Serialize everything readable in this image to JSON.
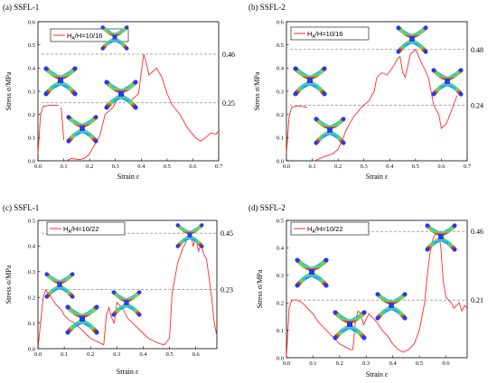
{
  "chart_data": [
    {
      "type": "line",
      "panel_label": "(a) SSFL-1",
      "xlabel": "Strain ε",
      "ylabel": "Stress σ/MPa",
      "xlim": [
        0,
        0.7
      ],
      "ylim": [
        0,
        0.6
      ],
      "xticks": [
        "0.0",
        "0.1",
        "0.2",
        "0.3",
        "0.4",
        "0.5",
        "0.6",
        "0.7"
      ],
      "yticks": [
        "0.0",
        "0.1",
        "0.2",
        "0.3",
        "0.4",
        "0.5",
        "0.6"
      ],
      "legend": {
        "main": "H",
        "sub": "A",
        "rest": "/H=10/16"
      },
      "line_color": "#ff2a2a",
      "annotations": [
        {
          "label": "0.46",
          "y": 0.46
        },
        {
          "label": "0.25",
          "y": 0.25
        }
      ],
      "series": [
        {
          "x": [
            0.0,
            0.01,
            0.02,
            0.05,
            0.07,
            0.08
          ],
          "y": [
            0.03,
            0.2,
            0.235,
            0.24,
            0.24,
            0.24
          ]
        },
        {
          "x": [
            0.09,
            0.1
          ],
          "y": [
            0.23,
            0.09
          ]
        },
        {
          "x": [
            0.11,
            0.13,
            0.16,
            0.18,
            0.2,
            0.22,
            0.24,
            0.26,
            0.29,
            0.3,
            0.31,
            0.33,
            0.36,
            0.39,
            0.4,
            0.41,
            0.42,
            0.43,
            0.44,
            0.46,
            0.48,
            0.5,
            0.52,
            0.55,
            0.58,
            0.61,
            0.63,
            0.65,
            0.67,
            0.69,
            0.7
          ],
          "y": [
            0.0,
            0.01,
            0.005,
            0.01,
            0.03,
            0.07,
            0.11,
            0.2,
            0.23,
            0.25,
            0.27,
            0.27,
            0.26,
            0.29,
            0.38,
            0.46,
            0.42,
            0.37,
            0.38,
            0.4,
            0.36,
            0.29,
            0.24,
            0.2,
            0.14,
            0.1,
            0.085,
            0.1,
            0.12,
            0.115,
            0.13
          ]
        }
      ]
    },
    {
      "type": "line",
      "panel_label": "(b) SSFL-2",
      "xlabel": "Strain ε",
      "ylabel": "Stress σ/MPa",
      "xlim": [
        0,
        0.7
      ],
      "ylim": [
        0,
        0.6
      ],
      "xticks": [
        "0.0",
        "0.1",
        "0.2",
        "0.3",
        "0.4",
        "0.5",
        "0.6",
        "0.7"
      ],
      "yticks": [
        "0.0",
        "0.1",
        "0.2",
        "0.3",
        "0.4",
        "0.5",
        "0.6"
      ],
      "legend": {
        "main": "H",
        "sub": "A",
        "rest": "/H=10/16"
      },
      "line_color": "#ff2a2a",
      "annotations": [
        {
          "label": "0.48",
          "y": 0.48
        },
        {
          "label": "0.24",
          "y": 0.24
        }
      ],
      "series": [
        {
          "x": [
            0.0,
            0.01,
            0.02,
            0.04,
            0.06,
            0.08
          ],
          "y": [
            0.03,
            0.19,
            0.23,
            0.235,
            0.235,
            0.23
          ]
        },
        {
          "x": [
            0.11,
            0.13,
            0.15,
            0.18,
            0.2,
            0.22,
            0.23,
            0.26,
            0.29,
            0.32,
            0.34,
            0.35,
            0.37,
            0.39,
            0.41,
            0.43,
            0.44,
            0.45,
            0.46,
            0.47,
            0.48,
            0.5,
            0.52,
            0.55,
            0.57,
            0.59,
            0.6,
            0.62,
            0.64,
            0.65,
            0.66
          ],
          "y": [
            0.0,
            0.01,
            0.02,
            0.03,
            0.05,
            0.1,
            0.13,
            0.19,
            0.23,
            0.26,
            0.3,
            0.36,
            0.38,
            0.37,
            0.4,
            0.44,
            0.45,
            0.38,
            0.36,
            0.41,
            0.46,
            0.48,
            0.43,
            0.36,
            0.24,
            0.2,
            0.14,
            0.16,
            0.22,
            0.25,
            0.28
          ]
        }
      ]
    },
    {
      "type": "line",
      "panel_label": "(c) SSFL-1",
      "xlabel": "Strain ε",
      "ylabel": "Stress σ/MPa",
      "xlim": [
        0,
        0.68
      ],
      "ylim": [
        0,
        0.5
      ],
      "xticks": [
        "0.0",
        "0.1",
        "0.2",
        "0.3",
        "0.4",
        "0.5",
        "0.6"
      ],
      "yticks": [
        "0.0",
        "0.1",
        "0.2",
        "0.3",
        "0.4",
        "0.5"
      ],
      "legend": {
        "main": "H",
        "sub": "A",
        "rest": "/H=10/22"
      },
      "line_color": "#ff2a2a",
      "annotations": [
        {
          "label": "0.45",
          "y": 0.45
        },
        {
          "label": "0.23",
          "y": 0.23
        }
      ],
      "series": [
        {
          "x": [
            0.0,
            0.01,
            0.02,
            0.03,
            0.05,
            0.07,
            0.09,
            0.1,
            0.12,
            0.14,
            0.16,
            0.18,
            0.2,
            0.22,
            0.24,
            0.25,
            0.26,
            0.27,
            0.28,
            0.29,
            0.3,
            0.32,
            0.34,
            0.36,
            0.38,
            0.4,
            0.42,
            0.44,
            0.46,
            0.48,
            0.5,
            0.51,
            0.52,
            0.53,
            0.54,
            0.55,
            0.56,
            0.57,
            0.58,
            0.59,
            0.6,
            0.61,
            0.62,
            0.63,
            0.64,
            0.65,
            0.66,
            0.67,
            0.68
          ],
          "y": [
            0.0,
            0.1,
            0.2,
            0.23,
            0.2,
            0.17,
            0.15,
            0.13,
            0.11,
            0.1,
            0.08,
            0.06,
            0.04,
            0.03,
            0.02,
            0.015,
            0.13,
            0.16,
            0.12,
            0.1,
            0.18,
            0.16,
            0.12,
            0.1,
            0.08,
            0.06,
            0.04,
            0.03,
            0.02,
            0.015,
            0.04,
            0.22,
            0.27,
            0.33,
            0.36,
            0.39,
            0.41,
            0.44,
            0.45,
            0.4,
            0.43,
            0.38,
            0.41,
            0.37,
            0.35,
            0.28,
            0.2,
            0.1,
            0.05
          ]
        }
      ]
    },
    {
      "type": "line",
      "panel_label": "(d) SSFL-2",
      "xlabel": "Strain ε",
      "ylabel": "Stress σ/MPa",
      "xlim": [
        0,
        0.68
      ],
      "ylim": [
        0,
        0.5
      ],
      "xticks": [
        "0.0",
        "0.1",
        "0.2",
        "0.3",
        "0.4",
        "0.5",
        "0.6"
      ],
      "yticks": [
        "0.0",
        "0.1",
        "0.2",
        "0.3",
        "0.4",
        "0.5"
      ],
      "legend": {
        "main": "H",
        "sub": "A",
        "rest": "/H=10/22"
      },
      "line_color": "#ff2a2a",
      "annotations": [
        {
          "label": "0.46",
          "y": 0.46
        },
        {
          "label": "0.21",
          "y": 0.21
        }
      ],
      "series": [
        {
          "x": [
            0.0,
            0.01,
            0.02,
            0.04,
            0.06,
            0.08,
            0.1,
            0.12,
            0.14,
            0.16,
            0.18,
            0.2,
            0.22,
            0.24,
            0.25,
            0.26,
            0.27,
            0.28,
            0.29,
            0.3,
            0.31,
            0.32,
            0.34,
            0.36,
            0.38,
            0.4,
            0.42,
            0.44,
            0.46,
            0.48,
            0.5,
            0.52,
            0.53,
            0.54,
            0.55,
            0.56,
            0.57,
            0.58,
            0.59,
            0.6,
            0.61,
            0.62,
            0.63,
            0.64,
            0.65,
            0.66,
            0.67,
            0.68
          ],
          "y": [
            0.0,
            0.18,
            0.21,
            0.21,
            0.2,
            0.18,
            0.16,
            0.13,
            0.11,
            0.09,
            0.07,
            0.05,
            0.04,
            0.03,
            0.03,
            0.14,
            0.17,
            0.16,
            0.12,
            0.14,
            0.16,
            0.15,
            0.13,
            0.1,
            0.08,
            0.05,
            0.03,
            0.02,
            0.03,
            0.05,
            0.1,
            0.2,
            0.3,
            0.38,
            0.43,
            0.45,
            0.46,
            0.41,
            0.28,
            0.22,
            0.21,
            0.2,
            0.18,
            0.19,
            0.2,
            0.17,
            0.19,
            0.18
          ]
        }
      ]
    }
  ],
  "insets": [
    {
      "icon": "lattice-deformation-image"
    },
    {
      "icon": "lattice-deformation-image"
    },
    {
      "icon": "lattice-deformation-image"
    },
    {
      "icon": "lattice-deformation-image"
    }
  ]
}
